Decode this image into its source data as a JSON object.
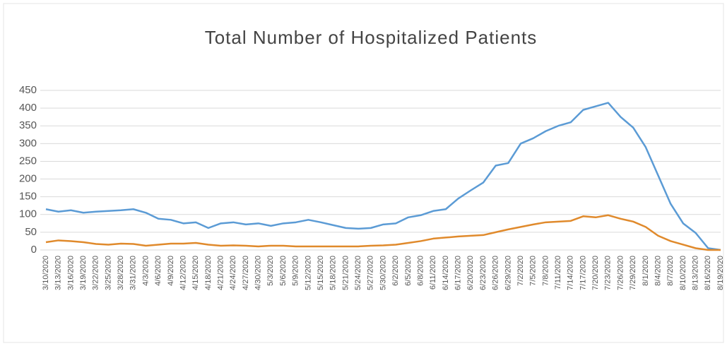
{
  "chart_data": {
    "type": "line",
    "title": "Total Number of Hospitalized Patients",
    "categories": [
      "3/10/2020",
      "3/13/2020",
      "3/16/2020",
      "3/19/2020",
      "3/22/2020",
      "3/25/2020",
      "3/28/2020",
      "3/31/2020",
      "4/3/2020",
      "4/6/2020",
      "4/9/2020",
      "4/12/2020",
      "4/15/2020",
      "4/18/2020",
      "4/21/2020",
      "4/24/2020",
      "4/27/2020",
      "4/30/2020",
      "5/3/2020",
      "5/6/2020",
      "5/9/2020",
      "5/12/2020",
      "5/15/2020",
      "5/18/2020",
      "5/21/2020",
      "5/24/2020",
      "5/27/2020",
      "5/30/2020",
      "6/2/2020",
      "6/5/2020",
      "6/8/2020",
      "6/11/2020",
      "6/14/2020",
      "6/17/2020",
      "6/20/2020",
      "6/23/2020",
      "6/26/2020",
      "6/29/2020",
      "7/2/2020",
      "7/5/2020",
      "7/8/2020",
      "7/11/2020",
      "7/14/2020",
      "7/17/2020",
      "7/20/2020",
      "7/23/2020",
      "7/26/2020",
      "7/29/2020",
      "8/1/2020",
      "8/4/2020",
      "8/7/2020",
      "8/10/2020",
      "8/13/2020",
      "8/16/2020",
      "8/19/2020"
    ],
    "series": [
      {
        "color": "#5b9bd5",
        "values": [
          115,
          108,
          112,
          105,
          108,
          110,
          112,
          115,
          105,
          88,
          85,
          75,
          78,
          62,
          75,
          78,
          72,
          75,
          68,
          75,
          78,
          85,
          78,
          70,
          62,
          60,
          62,
          72,
          75,
          92,
          98,
          110,
          115,
          145,
          168,
          190,
          238,
          245,
          300,
          315,
          335,
          350,
          360,
          395,
          405,
          415,
          375,
          345,
          290,
          210,
          130,
          75,
          48,
          5,
          0
        ]
      },
      {
        "color": "#e08a2c",
        "values": [
          22,
          27,
          25,
          22,
          17,
          15,
          18,
          17,
          12,
          15,
          18,
          18,
          20,
          15,
          12,
          13,
          12,
          10,
          12,
          12,
          10,
          10,
          10,
          10,
          10,
          10,
          12,
          13,
          15,
          20,
          25,
          32,
          35,
          38,
          40,
          42,
          50,
          58,
          65,
          72,
          78,
          80,
          82,
          95,
          92,
          98,
          88,
          80,
          65,
          40,
          25,
          15,
          5,
          0,
          0
        ]
      }
    ],
    "ylim": [
      0,
      450
    ],
    "yticks": [
      0,
      50,
      100,
      150,
      200,
      250,
      300,
      350,
      400,
      450
    ],
    "grid": true
  }
}
